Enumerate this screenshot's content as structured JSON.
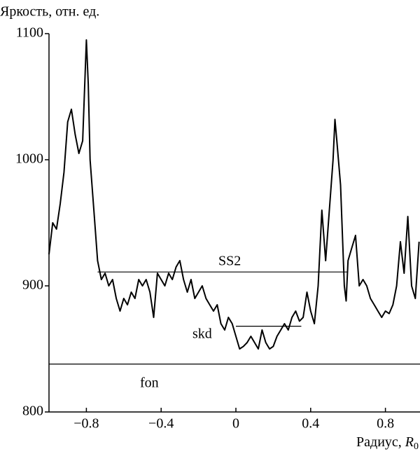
{
  "chart_data": {
    "type": "line",
    "y_label": "Яркость, отн. ед.",
    "x_label": {
      "text": "Радиус,",
      "symbol": "R",
      "subscript": "0"
    },
    "xlim": [
      -1,
      0.985
    ],
    "ylim": [
      800,
      1100
    ],
    "xticks": [
      {
        "value": -0.8,
        "label": "−0.8"
      },
      {
        "value": -0.4,
        "label": "−0.4"
      },
      0,
      0.4,
      0.8
    ],
    "yticks": [
      800,
      900,
      1000,
      1100
    ],
    "series": [
      {
        "color": "#000000",
        "x": [
          -1.0,
          -0.98,
          -0.96,
          -0.94,
          -0.92,
          -0.9,
          -0.88,
          -0.86,
          -0.84,
          -0.82,
          -0.8,
          -0.79,
          -0.78,
          -0.76,
          -0.74,
          -0.72,
          -0.7,
          -0.68,
          -0.66,
          -0.64,
          -0.62,
          -0.6,
          -0.58,
          -0.56,
          -0.54,
          -0.52,
          -0.5,
          -0.48,
          -0.46,
          -0.44,
          -0.42,
          -0.4,
          -0.38,
          -0.36,
          -0.34,
          -0.32,
          -0.3,
          -0.28,
          -0.26,
          -0.24,
          -0.22,
          -0.2,
          -0.18,
          -0.16,
          -0.14,
          -0.12,
          -0.1,
          -0.08,
          -0.06,
          -0.04,
          -0.02,
          0.0,
          0.02,
          0.04,
          0.06,
          0.08,
          0.1,
          0.12,
          0.14,
          0.16,
          0.18,
          0.2,
          0.22,
          0.24,
          0.26,
          0.28,
          0.3,
          0.32,
          0.34,
          0.36,
          0.38,
          0.4,
          0.42,
          0.44,
          0.46,
          0.48,
          0.5,
          0.52,
          0.53,
          0.54,
          0.56,
          0.58,
          0.59,
          0.6,
          0.62,
          0.64,
          0.66,
          0.68,
          0.7,
          0.72,
          0.74,
          0.76,
          0.78,
          0.8,
          0.82,
          0.84,
          0.86,
          0.88,
          0.9,
          0.92,
          0.94,
          0.96,
          0.98
        ],
        "values": [
          925,
          950,
          945,
          965,
          990,
          1030,
          1040,
          1020,
          1005,
          1015,
          1095,
          1060,
          1000,
          960,
          920,
          905,
          910,
          900,
          905,
          890,
          880,
          890,
          885,
          895,
          890,
          905,
          900,
          905,
          895,
          875,
          910,
          905,
          900,
          910,
          905,
          915,
          920,
          905,
          895,
          905,
          890,
          895,
          900,
          890,
          885,
          880,
          885,
          870,
          865,
          875,
          870,
          860,
          850,
          852,
          855,
          860,
          855,
          850,
          865,
          855,
          850,
          852,
          860,
          865,
          870,
          865,
          875,
          880,
          872,
          875,
          895,
          880,
          870,
          900,
          960,
          920,
          960,
          1000,
          1032,
          1015,
          980,
          900,
          888,
          920,
          930,
          940,
          900,
          905,
          900,
          890,
          885,
          880,
          875,
          880,
          878,
          885,
          900,
          935,
          910,
          955,
          900,
          890,
          935
        ]
      }
    ],
    "lines": [
      {
        "label": "SS2",
        "y": 911,
        "x": [
          -0.74,
          0.6
        ]
      },
      {
        "label": "skd",
        "y": 868,
        "x": [
          0,
          0.35
        ]
      },
      {
        "label": "fon",
        "y": 838
      }
    ]
  }
}
